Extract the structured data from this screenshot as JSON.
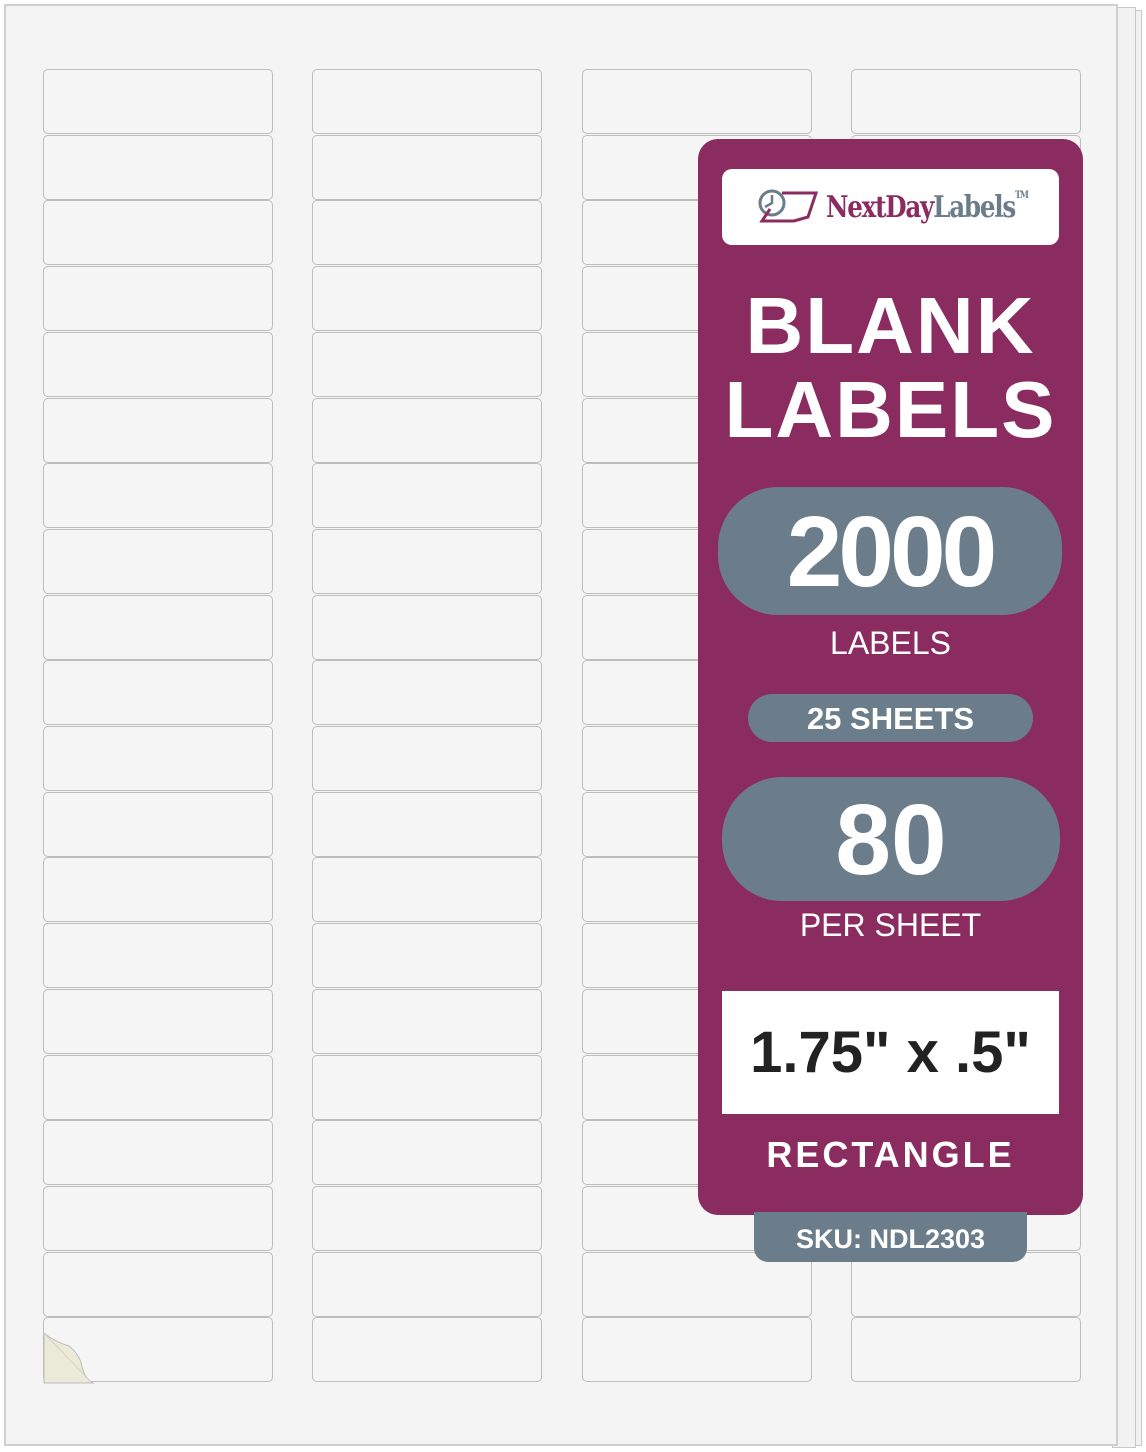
{
  "brand": {
    "name_part1": "NextDay",
    "name_part2": "Labels",
    "trademark": "TM"
  },
  "title_line1": "BLANK",
  "title_line2": "LABELS",
  "label_count": "2000",
  "label_count_caption": "LABELS",
  "sheets": "25 SHEETS",
  "per_sheet_count": "80",
  "per_sheet_caption": "PER SHEET",
  "label_size": "1.75\" x .5\"",
  "shape": "RECTANGLE",
  "sku": "SKU: NDL2303",
  "sheet_grid": {
    "columns": 4,
    "rows": 20
  },
  "colors": {
    "brand_purple": "#8b2c60",
    "slate": "#6b7d8a",
    "sheet": "#f4f4f4"
  }
}
